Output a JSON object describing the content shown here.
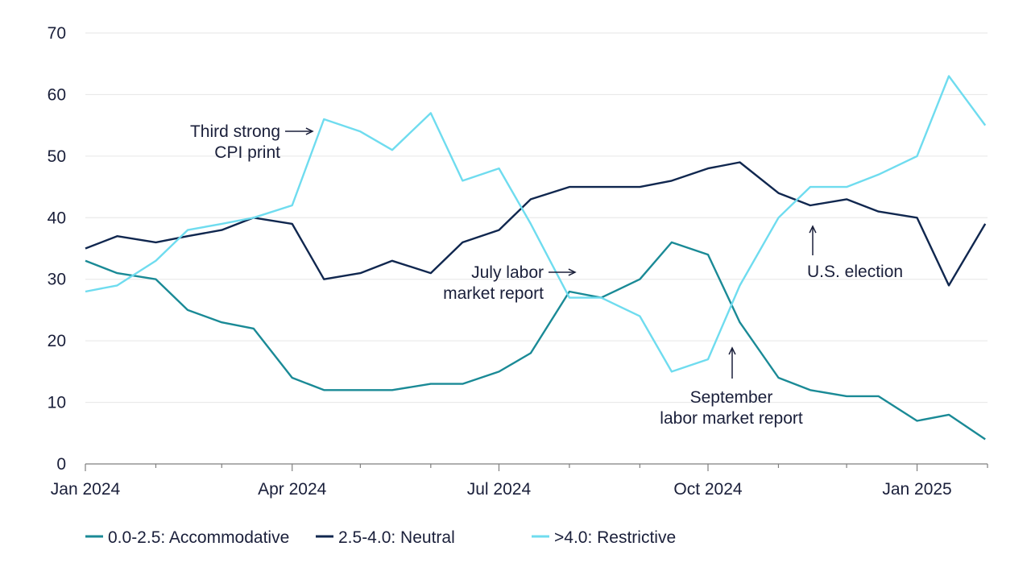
{
  "chart_data": {
    "type": "line",
    "title": "",
    "xlabel": "",
    "ylabel": "",
    "ylim": [
      0,
      70
    ],
    "yticks": [
      "0",
      "10",
      "20",
      "30",
      "40",
      "50",
      "60",
      "70"
    ],
    "xticks": [
      "Jan 2024",
      "Apr 2024",
      "Jul 2024",
      "Oct 2024",
      "Jan 2025"
    ],
    "grid": "horizontal",
    "legend_position": "bottom",
    "colors": {
      "accommodative": "#1a8a96",
      "neutral": "#10274f",
      "restrictive": "#6fdcef"
    },
    "series": [
      {
        "name": "0.0-2.5: Accommodative",
        "x": [
          "2024-01-01",
          "2024-01-15",
          "2024-02-01",
          "2024-02-15",
          "2024-03-01",
          "2024-03-15",
          "2024-04-01",
          "2024-04-15",
          "2024-05-01",
          "2024-05-15",
          "2024-06-01",
          "2024-06-15",
          "2024-07-01",
          "2024-07-15",
          "2024-08-01",
          "2024-08-15",
          "2024-09-01",
          "2024-09-15",
          "2024-10-01",
          "2024-10-15",
          "2024-11-01",
          "2024-11-15",
          "2024-12-01",
          "2024-12-15",
          "2025-01-01",
          "2025-01-15",
          "2025-01-31"
        ],
        "values": [
          33,
          31,
          30,
          25,
          23,
          22,
          14,
          12,
          12,
          12,
          13,
          13,
          15,
          18,
          28,
          27,
          30,
          36,
          34,
          23,
          14,
          12,
          11,
          11,
          7,
          8,
          4
        ]
      },
      {
        "name": "2.5-4.0: Neutral",
        "x": [
          "2024-01-01",
          "2024-01-15",
          "2024-02-01",
          "2024-02-15",
          "2024-03-01",
          "2024-03-15",
          "2024-04-01",
          "2024-04-15",
          "2024-05-01",
          "2024-05-15",
          "2024-06-01",
          "2024-06-15",
          "2024-07-01",
          "2024-07-15",
          "2024-08-01",
          "2024-08-15",
          "2024-09-01",
          "2024-09-15",
          "2024-10-01",
          "2024-10-15",
          "2024-11-01",
          "2024-11-15",
          "2024-12-01",
          "2024-12-15",
          "2025-01-01",
          "2025-01-15",
          "2025-01-31"
        ],
        "values": [
          35,
          37,
          36,
          37,
          38,
          40,
          39,
          30,
          31,
          33,
          31,
          36,
          38,
          43,
          45,
          45,
          45,
          46,
          48,
          49,
          44,
          42,
          43,
          41,
          40,
          29,
          39
        ]
      },
      {
        "name": ">4.0: Restrictive",
        "x": [
          "2024-01-01",
          "2024-01-15",
          "2024-02-01",
          "2024-02-15",
          "2024-03-01",
          "2024-03-15",
          "2024-04-01",
          "2024-04-15",
          "2024-05-01",
          "2024-05-15",
          "2024-06-01",
          "2024-06-15",
          "2024-07-01",
          "2024-07-15",
          "2024-08-01",
          "2024-08-15",
          "2024-09-01",
          "2024-09-15",
          "2024-10-01",
          "2024-10-15",
          "2024-11-01",
          "2024-11-15",
          "2024-12-01",
          "2024-12-15",
          "2025-01-01",
          "2025-01-15",
          "2025-01-31"
        ],
        "values": [
          28,
          29,
          33,
          38,
          39,
          40,
          42,
          56,
          54,
          51,
          57,
          46,
          48,
          39,
          27,
          27,
          24,
          15,
          17,
          29,
          40,
          45,
          45,
          47,
          50,
          63,
          55
        ]
      }
    ],
    "annotations": [
      {
        "lines": [
          "Third strong",
          "CPI print"
        ],
        "date": "2024-04-10",
        "value": 53
      },
      {
        "lines": [
          "July labor",
          "market report"
        ],
        "date": "2024-08-02",
        "value": 31
      },
      {
        "lines": [
          "September",
          "labor market report"
        ],
        "date": "2024-10-04",
        "value": 17
      },
      {
        "lines": [
          "U.S. election"
        ],
        "date": "2024-11-05",
        "value": 38
      }
    ]
  }
}
